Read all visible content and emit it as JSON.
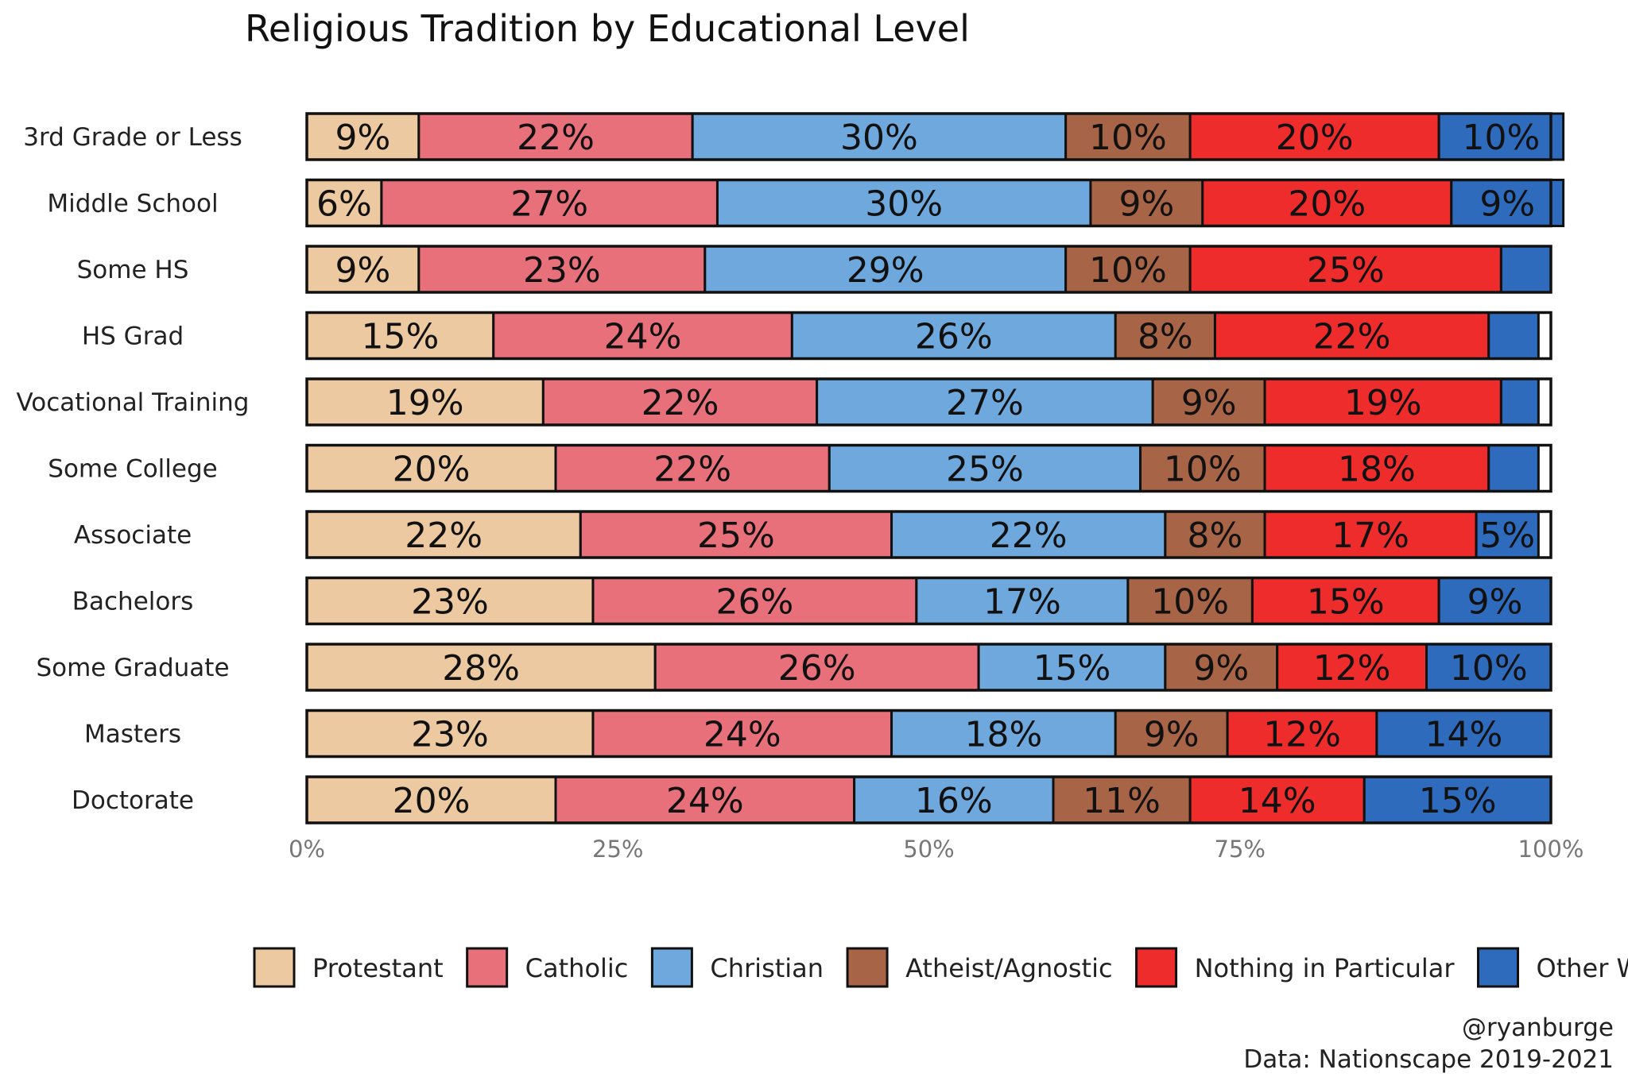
{
  "chart_data": {
    "type": "bar",
    "orientation": "horizontal",
    "stacked": true,
    "title": "Religious Tradition by Educational Level",
    "categories": [
      "3rd Grade or Less",
      "Middle School",
      "Some HS",
      "HS Grad",
      "Vocational Training",
      "Some College",
      "Associate",
      "Bachelors",
      "Some Graduate",
      "Masters",
      "Doctorate"
    ],
    "series": [
      {
        "name": "Protestant",
        "color": "#ECC9A0",
        "values": [
          9,
          6,
          9,
          15,
          19,
          20,
          22,
          23,
          28,
          23,
          20
        ],
        "labels": [
          "9%",
          "6%",
          "9%",
          "15%",
          "19%",
          "20%",
          "22%",
          "23%",
          "28%",
          "23%",
          "20%"
        ]
      },
      {
        "name": "Catholic",
        "color": "#E8707A",
        "values": [
          22,
          27,
          23,
          24,
          22,
          22,
          25,
          26,
          26,
          24,
          24
        ],
        "labels": [
          "22%",
          "27%",
          "23%",
          "24%",
          "22%",
          "22%",
          "25%",
          "26%",
          "26%",
          "24%",
          "24%"
        ]
      },
      {
        "name": "Christian",
        "color": "#6FA8DC",
        "values": [
          30,
          30,
          29,
          26,
          27,
          25,
          22,
          17,
          15,
          18,
          16
        ],
        "labels": [
          "30%",
          "30%",
          "29%",
          "26%",
          "27%",
          "25%",
          "22%",
          "17%",
          "15%",
          "18%",
          "16%"
        ]
      },
      {
        "name": "Atheist/Agnostic",
        "color": "#A86446",
        "values": [
          10,
          9,
          10,
          8,
          9,
          10,
          8,
          10,
          9,
          9,
          11
        ],
        "labels": [
          "10%",
          "9%",
          "10%",
          "8%",
          "9%",
          "10%",
          "8%",
          "10%",
          "9%",
          "9%",
          "11%"
        ]
      },
      {
        "name": "Nothing in Particular",
        "color": "#EE2C2C",
        "values": [
          20,
          20,
          25,
          22,
          19,
          18,
          17,
          15,
          12,
          12,
          14
        ],
        "labels": [
          "20%",
          "20%",
          "25%",
          "22%",
          "19%",
          "18%",
          "17%",
          "15%",
          "12%",
          "12%",
          "14%"
        ]
      },
      {
        "name": "Other World Religion",
        "color": "#2F6BBD",
        "values": [
          10,
          9,
          4,
          4,
          3,
          4,
          5,
          9,
          10,
          14,
          15
        ],
        "labels": [
          "10%",
          "9%",
          "",
          "",
          "",
          "",
          "5%",
          "9%",
          "10%",
          "14%",
          "15%"
        ]
      }
    ],
    "xlim": [
      0,
      100
    ],
    "x_ticks": [
      "0%",
      "25%",
      "50%",
      "75%",
      "100%"
    ],
    "legend_position": "bottom",
    "grid": false
  },
  "credit": {
    "handle": "@ryanburge",
    "source": "Data: Nationscape 2019-2021"
  }
}
